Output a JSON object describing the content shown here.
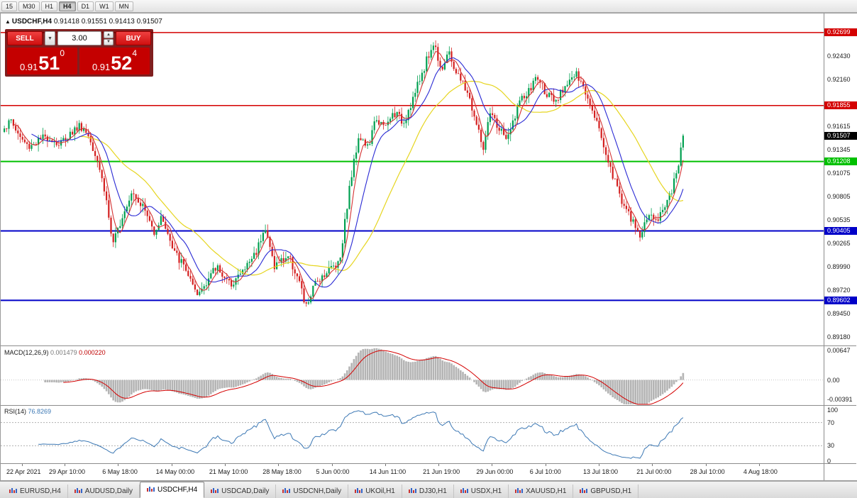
{
  "app": {
    "toolbar": {
      "timeframes": [
        "15",
        "M30",
        "H1",
        "H4",
        "D1",
        "W1",
        "MN"
      ],
      "active_timeframe": "H4"
    }
  },
  "chart": {
    "collapse_arrow": "▲",
    "symbol_title": "USDCHF,H4",
    "ohlc_text": "0.91418 0.91551 0.91413 0.91507"
  },
  "trade_panel": {
    "sell_label": "SELL",
    "buy_label": "BUY",
    "lot_value": "3.00",
    "dropdown_glyph": "▼",
    "spin_up_glyph": "▲",
    "spin_down_glyph": "▼",
    "sell_price": {
      "prefix": "0.91",
      "big": "51",
      "sup": "0"
    },
    "buy_price": {
      "prefix": "0.91",
      "big": "52",
      "sup": "4"
    }
  },
  "price_axis_ticks": [
    "0.92430",
    "0.92160",
    "0.91615",
    "0.91345",
    "0.91075",
    "0.90805",
    "0.90535",
    "0.90265",
    "0.89990",
    "0.89720",
    "0.89450",
    "0.89180"
  ],
  "level_badges": [
    {
      "label": "0.92699",
      "price": 0.92699,
      "color": "#d40000",
      "line_width": 1.5
    },
    {
      "label": "0.91855",
      "price": 0.91855,
      "color": "#d40000",
      "line_width": 1.5
    },
    {
      "label": "0.91208",
      "price": 0.91208,
      "color": "#00c000",
      "line_width": 2
    },
    {
      "label": "0.90405",
      "price": 0.90405,
      "color": "#0000c8",
      "line_width": 2
    },
    {
      "label": "0.89602",
      "price": 0.89602,
      "color": "#0000c8",
      "line_width": 2
    }
  ],
  "current_price": {
    "label": "0.91507",
    "price": 0.91507,
    "color": "#000000"
  },
  "macd_panel": {
    "name": "MACD(12,26,9)",
    "value_main": "0.001479",
    "value_signal": "0.000220",
    "axis_labels": [
      {
        "label": "0.00647",
        "value": 0.00647
      },
      {
        "label": "0.00",
        "value": 0
      },
      {
        "label": "-0.00391",
        "value": -0.00391
      }
    ]
  },
  "rsi_panel": {
    "name": "RSI(14)",
    "value": "76.8269",
    "axis_labels": [
      {
        "label": "100",
        "value": 100
      },
      {
        "label": "70",
        "value": 70
      },
      {
        "label": "30",
        "value": 30
      },
      {
        "label": "0",
        "value": 0
      }
    ],
    "dashed_levels": [
      70,
      30
    ]
  },
  "time_axis": [
    "22 Apr 2021",
    "29 Apr 10:00",
    "6 May 18:00",
    "14 May 00:00",
    "21 May 10:00",
    "28 May 18:00",
    "5 Jun 00:00",
    "14 Jun 11:00",
    "21 Jun 19:00",
    "29 Jun 00:00",
    "6 Jul 10:00",
    "13 Jul 18:00",
    "21 Jul 00:00",
    "28 Jul 10:00",
    "4 Aug 18:00"
  ],
  "tabs": {
    "active_index": 2,
    "items": [
      "EURUSD,H4",
      "AUDUSD,Daily",
      "USDCHF,H4",
      "USDCAD,Daily",
      "USDCNH,Daily",
      "UKOil,H1",
      "DJ30,H1",
      "USDX,H1",
      "XAUUSD,H1",
      "GBPUSD,H1"
    ]
  },
  "colors": {
    "up": "#00a050",
    "down": "#d42020",
    "ma_fast": "#d43232",
    "ma_mid": "#2a2ad4",
    "ma_slow": "#e6d51f",
    "macd_hist": "#b4b4b4",
    "macd_signal": "#d40000",
    "rsi_line": "#3c78b4",
    "dashed_level": "#b0b0b0"
  },
  "chart_data": {
    "type": "candlestick",
    "symbol": "USDCHF",
    "timeframe": "H4",
    "title": "USDCHF,H4",
    "ohlc_header": {
      "open": 0.91418,
      "high": 0.91551,
      "low": 0.91413,
      "close": 0.91507
    },
    "y_axis_range": [
      0.8908,
      0.9292
    ],
    "x_axis_labels": [
      "22 Apr 2021",
      "29 Apr 10:00",
      "6 May 18:00",
      "14 May 00:00",
      "21 May 10:00",
      "28 May 18:00",
      "5 Jun 00:00",
      "14 Jun 11:00",
      "21 Jun 19:00",
      "29 Jun 00:00",
      "6 Jul 10:00",
      "13 Jul 18:00",
      "21 Jul 00:00",
      "28 Jul 10:00",
      "4 Aug 18:00"
    ],
    "horizontal_levels": [
      0.92699,
      0.91855,
      0.91208,
      0.90405,
      0.89602
    ],
    "current_close": 0.91507,
    "price_path_anchors": [
      [
        0,
        0.9159
      ],
      [
        0.01,
        0.9168
      ],
      [
        0.022,
        0.915
      ],
      [
        0.035,
        0.9138
      ],
      [
        0.05,
        0.9145
      ],
      [
        0.065,
        0.915
      ],
      [
        0.08,
        0.914
      ],
      [
        0.095,
        0.9152
      ],
      [
        0.112,
        0.9163
      ],
      [
        0.125,
        0.915
      ],
      [
        0.138,
        0.9122
      ],
      [
        0.15,
        0.9078
      ],
      [
        0.16,
        0.9022
      ],
      [
        0.172,
        0.9055
      ],
      [
        0.188,
        0.9088
      ],
      [
        0.205,
        0.9068
      ],
      [
        0.22,
        0.904
      ],
      [
        0.233,
        0.9057
      ],
      [
        0.248,
        0.9018
      ],
      [
        0.268,
        0.8996
      ],
      [
        0.283,
        0.8963
      ],
      [
        0.3,
        0.8986
      ],
      [
        0.315,
        0.9
      ],
      [
        0.33,
        0.8978
      ],
      [
        0.35,
        0.8992
      ],
      [
        0.372,
        0.9018
      ],
      [
        0.383,
        0.9047
      ],
      [
        0.398,
        0.9
      ],
      [
        0.418,
        0.9012
      ],
      [
        0.433,
        0.8986
      ],
      [
        0.444,
        0.8951
      ],
      [
        0.46,
        0.8983
      ],
      [
        0.478,
        0.8996
      ],
      [
        0.494,
        0.9006
      ],
      [
        0.508,
        0.9088
      ],
      [
        0.522,
        0.9152
      ],
      [
        0.536,
        0.9136
      ],
      [
        0.548,
        0.9172
      ],
      [
        0.56,
        0.9158
      ],
      [
        0.574,
        0.9178
      ],
      [
        0.588,
        0.9166
      ],
      [
        0.608,
        0.9206
      ],
      [
        0.622,
        0.9238
      ],
      [
        0.633,
        0.9258
      ],
      [
        0.644,
        0.9228
      ],
      [
        0.654,
        0.9246
      ],
      [
        0.668,
        0.922
      ],
      [
        0.682,
        0.9202
      ],
      [
        0.696,
        0.9162
      ],
      [
        0.706,
        0.9135
      ],
      [
        0.716,
        0.9176
      ],
      [
        0.73,
        0.9157
      ],
      [
        0.742,
        0.9146
      ],
      [
        0.757,
        0.9188
      ],
      [
        0.772,
        0.92
      ],
      [
        0.784,
        0.9219
      ],
      [
        0.798,
        0.9201
      ],
      [
        0.812,
        0.9186
      ],
      [
        0.828,
        0.9213
      ],
      [
        0.842,
        0.9221
      ],
      [
        0.856,
        0.9201
      ],
      [
        0.868,
        0.9181
      ],
      [
        0.882,
        0.9142
      ],
      [
        0.897,
        0.9103
      ],
      [
        0.912,
        0.9072
      ],
      [
        0.925,
        0.905
      ],
      [
        0.938,
        0.9035
      ],
      [
        0.95,
        0.9062
      ],
      [
        0.96,
        0.905
      ],
      [
        0.972,
        0.907
      ],
      [
        0.982,
        0.9083
      ],
      [
        0.99,
        0.9105
      ],
      [
        1,
        0.91507
      ]
    ],
    "indicators": [
      {
        "type": "macd",
        "params": "12,26,9",
        "last_main": 0.001479,
        "last_signal": 0.00022,
        "axis_range": [
          -0.00512,
          0.00702
        ]
      },
      {
        "type": "rsi",
        "params": "14",
        "last": 76.8269,
        "axis_range": [
          0,
          100
        ]
      }
    ]
  }
}
